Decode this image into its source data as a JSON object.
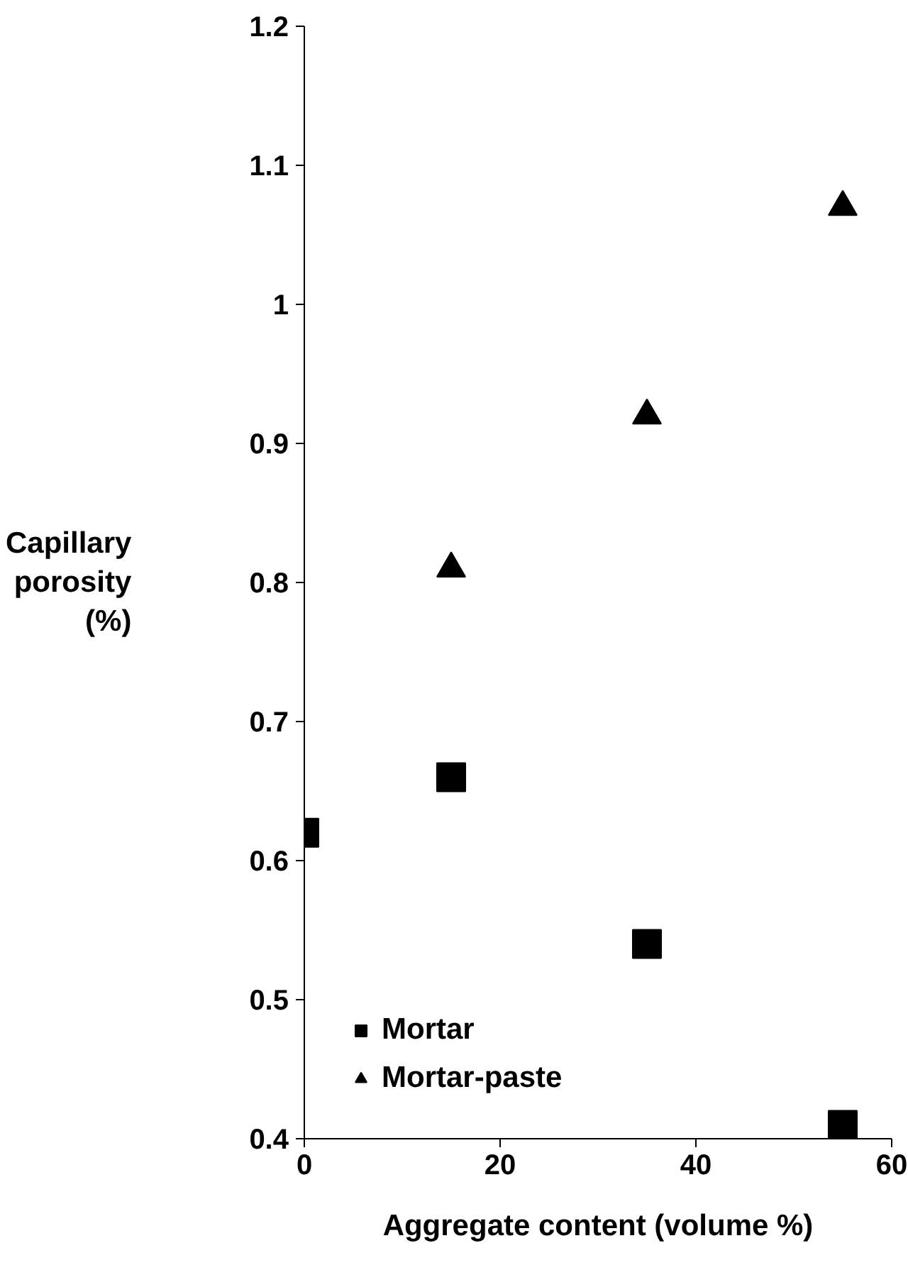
{
  "chart_data": {
    "type": "scatter",
    "xlabel": "Aggregate content (volume %)",
    "ylabel": "Capillary porosity (%)",
    "xlim": [
      0,
      60
    ],
    "xticks": [
      0,
      20,
      40,
      60
    ],
    "ylim": [
      0.4,
      1.2
    ],
    "yticks": [
      0.4,
      0.5,
      0.6,
      0.7,
      0.8,
      0.9,
      1,
      1.1,
      1.2
    ],
    "grid": false,
    "legend": "bottom left",
    "series": [
      {
        "name": "Mortar",
        "color": "#000000",
        "marker": "square",
        "x": [
          0,
          15,
          35,
          55
        ],
        "values": [
          0.62,
          0.66,
          0.54,
          0.41
        ]
      },
      {
        "name": "Mortar-paste",
        "color": "#000000",
        "marker": "triangle",
        "x": [
          15,
          35,
          55
        ],
        "values": [
          0.81,
          0.92,
          1.07
        ]
      }
    ]
  }
}
